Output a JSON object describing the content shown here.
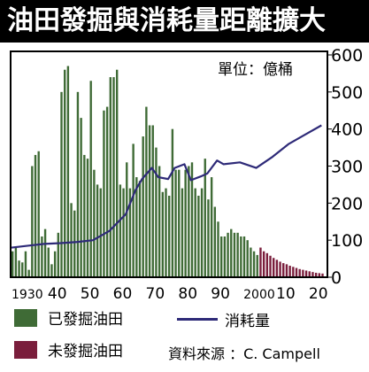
{
  "title": "油田發掘與消耗量距離擴大",
  "unit_label": "單位：億桶",
  "legend": {
    "discovered": "已發掘油田",
    "undiscovered": "未發掘油田",
    "consumption": "消耗量"
  },
  "source": "資料來源 ：C. Campell",
  "colors": {
    "discovered": "#3f6b36",
    "undiscovered": "#7a1e3c",
    "consumption": "#2e2a78",
    "plot_bg": "#ffffff",
    "title_bg": "#000000"
  },
  "chart_data": {
    "type": "bar",
    "title": "油田發掘與消耗量距離擴大",
    "unit": "單位：億桶",
    "y_axis": {
      "position": "right",
      "range": [
        0,
        600
      ],
      "ticks": [
        0,
        100,
        200,
        300,
        400,
        500,
        600
      ]
    },
    "x_axis": {
      "range": [
        1930,
        2025
      ],
      "tick_labels": [
        "1930",
        "40",
        "50",
        "60",
        "70",
        "80",
        "90",
        "2000",
        "10",
        "20"
      ],
      "tick_values": [
        1930,
        1940,
        1950,
        1960,
        1970,
        1980,
        1990,
        2000,
        2010,
        2020
      ]
    },
    "series": [
      {
        "name": "已發掘油田",
        "kind": "bar",
        "x": [
          1930,
          1931,
          1932,
          1933,
          1934,
          1935,
          1936,
          1937,
          1938,
          1939,
          1940,
          1941,
          1942,
          1943,
          1944,
          1945,
          1946,
          1947,
          1948,
          1949,
          1950,
          1951,
          1952,
          1953,
          1954,
          1955,
          1956,
          1957,
          1958,
          1959,
          1960,
          1961,
          1962,
          1963,
          1964,
          1965,
          1966,
          1967,
          1968,
          1969,
          1970,
          1971,
          1972,
          1973,
          1974,
          1975,
          1976,
          1977,
          1978,
          1979,
          1980,
          1981,
          1982,
          1983,
          1984,
          1985,
          1986,
          1987,
          1988,
          1989,
          1990,
          1991,
          1992,
          1993,
          1994,
          1995,
          1996,
          1997,
          1998,
          1999,
          2000,
          2001,
          2002,
          2003,
          2004,
          2005
        ],
        "values": [
          70,
          80,
          45,
          40,
          70,
          20,
          300,
          330,
          340,
          110,
          130,
          80,
          35,
          70,
          120,
          500,
          560,
          570,
          200,
          180,
          500,
          430,
          330,
          320,
          530,
          290,
          250,
          240,
          450,
          460,
          540,
          540,
          560,
          250,
          240,
          310,
          240,
          360,
          270,
          260,
          380,
          460,
          410,
          410,
          350,
          300,
          230,
          240,
          220,
          400,
          290,
          290,
          240,
          290,
          300,
          310,
          240,
          220,
          240,
          320,
          210,
          270,
          190,
          150,
          110,
          110,
          120,
          130,
          120,
          120,
          110,
          110,
          100,
          80,
          70,
          60
        ]
      },
      {
        "name": "未發掘油田",
        "kind": "bar",
        "x": [
          2006,
          2007,
          2008,
          2009,
          2010,
          2011,
          2012,
          2013,
          2014,
          2015,
          2016,
          2017,
          2018,
          2019,
          2020,
          2021,
          2022,
          2023,
          2024,
          2025
        ],
        "values": [
          80,
          70,
          65,
          58,
          52,
          47,
          42,
          38,
          35,
          31,
          28,
          25,
          22,
          20,
          18,
          16,
          14,
          12,
          11,
          10
        ]
      },
      {
        "name": "消耗量",
        "kind": "line",
        "x": [
          1930,
          1935,
          1940,
          1945,
          1950,
          1955,
          1960,
          1965,
          1968,
          1970,
          1973,
          1975,
          1978,
          1980,
          1983,
          1985,
          1988,
          1990,
          1993,
          1995,
          2000,
          2005,
          2010,
          2015,
          2020,
          2025
        ],
        "values": [
          80,
          85,
          90,
          92,
          95,
          100,
          125,
          170,
          235,
          265,
          295,
          270,
          265,
          295,
          305,
          262,
          272,
          280,
          315,
          305,
          310,
          295,
          325,
          360,
          385,
          410
        ]
      }
    ]
  }
}
